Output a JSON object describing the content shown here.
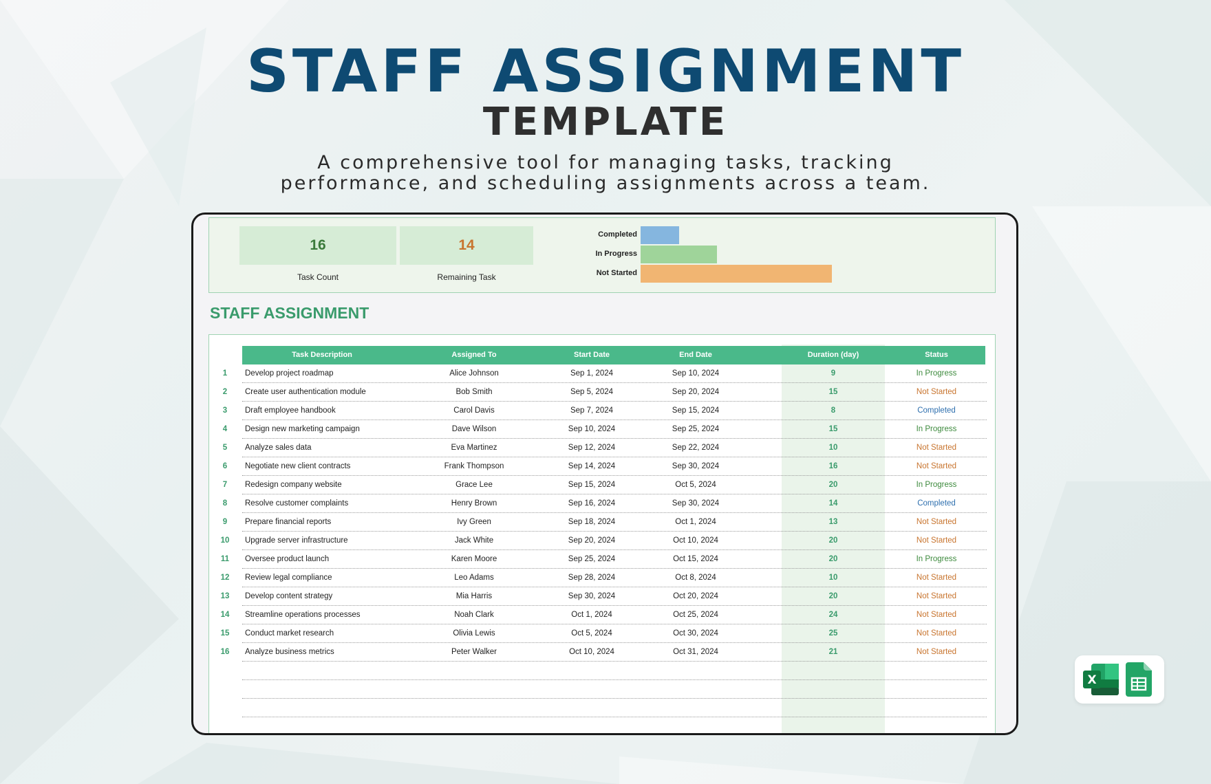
{
  "hero": {
    "title": "STAFF ASSIGNMENT",
    "subtitle": "TEMPLATE",
    "desc_line1": "A comprehensive tool for managing tasks, tracking",
    "desc_line2": "performance, and scheduling assignments across a team."
  },
  "summary": {
    "task_count": "16",
    "task_count_label": "Task Count",
    "remaining": "14",
    "remaining_label": "Remaining Task",
    "chart_data": {
      "type": "bar",
      "orientation": "horizontal",
      "categories": [
        "Completed",
        "In Progress",
        "Not Started"
      ],
      "values": [
        2,
        4,
        10
      ],
      "colors": [
        "#85b6df",
        "#9fd49a",
        "#f1b572"
      ]
    }
  },
  "section_title": "STAFF ASSIGNMENT",
  "table": {
    "headers": [
      "Task Description",
      "Assigned To",
      "Start Date",
      "End Date",
      "Duration (day)",
      "Status"
    ],
    "rows": [
      {
        "n": "1",
        "task": "Develop project roadmap",
        "who": "Alice Johnson",
        "start": "Sep 1, 2024",
        "end": "Sep 10, 2024",
        "dur": "9",
        "status": "In Progress"
      },
      {
        "n": "2",
        "task": "Create user authentication module",
        "who": "Bob Smith",
        "start": "Sep 5, 2024",
        "end": "Sep 20, 2024",
        "dur": "15",
        "status": "Not Started"
      },
      {
        "n": "3",
        "task": "Draft employee handbook",
        "who": "Carol Davis",
        "start": "Sep 7, 2024",
        "end": "Sep 15, 2024",
        "dur": "8",
        "status": "Completed"
      },
      {
        "n": "4",
        "task": "Design new marketing campaign",
        "who": "Dave Wilson",
        "start": "Sep 10, 2024",
        "end": "Sep 25, 2024",
        "dur": "15",
        "status": "In Progress"
      },
      {
        "n": "5",
        "task": "Analyze sales data",
        "who": "Eva Martinez",
        "start": "Sep 12, 2024",
        "end": "Sep 22, 2024",
        "dur": "10",
        "status": "Not Started"
      },
      {
        "n": "6",
        "task": "Negotiate new client contracts",
        "who": "Frank Thompson",
        "start": "Sep 14, 2024",
        "end": "Sep 30, 2024",
        "dur": "16",
        "status": "Not Started"
      },
      {
        "n": "7",
        "task": "Redesign company website",
        "who": "Grace Lee",
        "start": "Sep 15, 2024",
        "end": "Oct 5, 2024",
        "dur": "20",
        "status": "In Progress"
      },
      {
        "n": "8",
        "task": "Resolve customer complaints",
        "who": "Henry Brown",
        "start": "Sep 16, 2024",
        "end": "Sep 30, 2024",
        "dur": "14",
        "status": "Completed"
      },
      {
        "n": "9",
        "task": "Prepare financial reports",
        "who": "Ivy Green",
        "start": "Sep 18, 2024",
        "end": "Oct 1, 2024",
        "dur": "13",
        "status": "Not Started"
      },
      {
        "n": "10",
        "task": "Upgrade server infrastructure",
        "who": "Jack White",
        "start": "Sep 20, 2024",
        "end": "Oct 10, 2024",
        "dur": "20",
        "status": "Not Started"
      },
      {
        "n": "11",
        "task": "Oversee product launch",
        "who": "Karen Moore",
        "start": "Sep 25, 2024",
        "end": "Oct 15, 2024",
        "dur": "20",
        "status": "In Progress"
      },
      {
        "n": "12",
        "task": "Review legal compliance",
        "who": "Leo Adams",
        "start": "Sep 28, 2024",
        "end": "Oct 8, 2024",
        "dur": "10",
        "status": "Not Started"
      },
      {
        "n": "13",
        "task": "Develop content strategy",
        "who": "Mia Harris",
        "start": "Sep 30, 2024",
        "end": "Oct 20, 2024",
        "dur": "20",
        "status": "Not Started"
      },
      {
        "n": "14",
        "task": "Streamline operations processes",
        "who": "Noah Clark",
        "start": "Oct 1, 2024",
        "end": "Oct 25, 2024",
        "dur": "24",
        "status": "Not Started"
      },
      {
        "n": "15",
        "task": "Conduct market research",
        "who": "Olivia Lewis",
        "start": "Oct 5, 2024",
        "end": "Oct 30, 2024",
        "dur": "25",
        "status": "Not Started"
      },
      {
        "n": "16",
        "task": "Analyze business metrics",
        "who": "Peter Walker",
        "start": "Oct 10, 2024",
        "end": "Oct 31, 2024",
        "dur": "21",
        "status": "Not Started"
      }
    ]
  },
  "status_colors": {
    "In Progress": "#3d8a3d",
    "Not Started": "#c8742e",
    "Completed": "#2e6fae"
  },
  "colors": {
    "accent_green": "#4ab98a",
    "title_blue": "#0e4a72",
    "count_green": "#3a7a3a",
    "remaining_orange": "#c8742e"
  },
  "icons": [
    "excel-icon",
    "google-sheets-icon"
  ]
}
